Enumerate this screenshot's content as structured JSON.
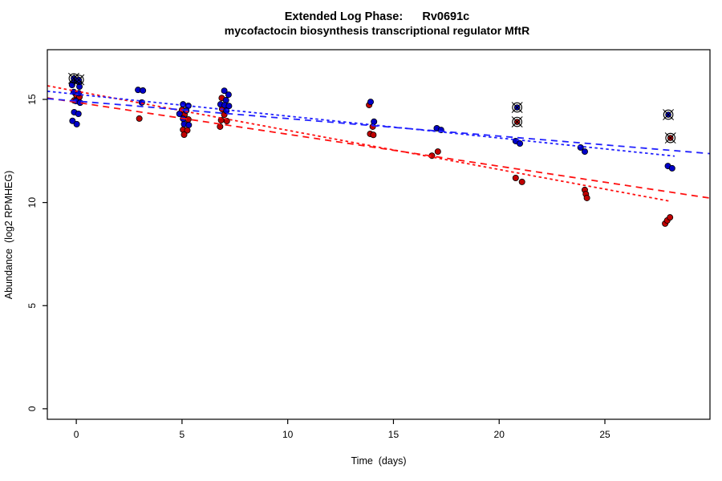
{
  "chart_data": {
    "type": "scatter",
    "title": "Extended Log Phase:      Rv0691c",
    "subtitle": "mycofactocin biosynthesis transcriptional regulator MftR",
    "xlabel": "Time  (days)",
    "ylabel": "Abundance  (log2 RPMHEG)",
    "xlim": [
      -1.37,
      29.97
    ],
    "ylim": [
      -0.51,
      17.41
    ],
    "x_ticks": [
      0,
      5,
      10,
      15,
      20,
      25
    ],
    "y_ticks": [
      0,
      5,
      10,
      15
    ],
    "grid": false,
    "legend": "none",
    "colors": {
      "blue_point": "#0000C8",
      "red_point": "#C00000",
      "blue_line": "#2020FF",
      "red_line": "#FF1010",
      "point_outline": "#000000",
      "box": "#000000"
    },
    "series": [
      {
        "name": "red",
        "color_key": "red_point",
        "points": [
          [
            0.0,
            15.22
          ],
          [
            0.15,
            15.12
          ],
          [
            -0.1,
            14.95
          ],
          [
            2.98,
            14.07
          ],
          [
            5.0,
            14.49
          ],
          [
            5.12,
            14.26
          ],
          [
            5.3,
            14.03
          ],
          [
            5.05,
            13.53
          ],
          [
            5.25,
            13.5
          ],
          [
            5.1,
            13.29
          ],
          [
            6.88,
            15.07
          ],
          [
            6.9,
            14.53
          ],
          [
            7.0,
            14.26
          ],
          [
            6.85,
            13.99
          ],
          [
            7.12,
            13.95
          ],
          [
            6.8,
            13.68
          ],
          [
            13.85,
            14.73
          ],
          [
            14.02,
            13.68
          ],
          [
            13.9,
            13.33
          ],
          [
            14.05,
            13.28
          ],
          [
            16.82,
            12.27
          ],
          [
            17.1,
            12.47
          ],
          [
            20.78,
            11.19
          ],
          [
            21.08,
            11.0
          ],
          [
            24.05,
            10.61
          ],
          [
            24.1,
            10.41
          ],
          [
            24.15,
            10.22
          ],
          [
            27.85,
            8.98
          ],
          [
            27.95,
            9.13
          ],
          [
            28.08,
            9.28
          ]
        ]
      },
      {
        "name": "blue",
        "color_key": "blue_point",
        "points": [
          [
            -0.1,
            15.9
          ],
          [
            0.12,
            15.85
          ],
          [
            -0.2,
            15.7
          ],
          [
            0.15,
            15.62
          ],
          [
            -0.12,
            15.36
          ],
          [
            0.12,
            15.3
          ],
          [
            -0.02,
            14.92
          ],
          [
            0.18,
            14.84
          ],
          [
            -0.1,
            14.38
          ],
          [
            0.1,
            14.3
          ],
          [
            -0.18,
            13.96
          ],
          [
            0.02,
            13.8
          ],
          [
            2.92,
            15.46
          ],
          [
            3.15,
            15.43
          ],
          [
            3.1,
            14.85
          ],
          [
            5.05,
            14.76
          ],
          [
            5.3,
            14.69
          ],
          [
            5.2,
            14.46
          ],
          [
            4.88,
            14.3
          ],
          [
            5.05,
            14.06
          ],
          [
            5.1,
            13.8
          ],
          [
            5.32,
            13.76
          ],
          [
            7.0,
            15.42
          ],
          [
            7.2,
            15.23
          ],
          [
            7.08,
            14.96
          ],
          [
            6.82,
            14.76
          ],
          [
            7.02,
            14.72
          ],
          [
            7.22,
            14.68
          ],
          [
            7.1,
            14.45
          ],
          [
            13.92,
            14.88
          ],
          [
            14.08,
            13.92
          ],
          [
            17.05,
            13.6
          ],
          [
            17.25,
            13.52
          ],
          [
            20.78,
            12.98
          ],
          [
            20.98,
            12.86
          ],
          [
            23.85,
            12.67
          ],
          [
            24.05,
            12.47
          ],
          [
            27.98,
            11.77
          ],
          [
            28.18,
            11.66
          ]
        ]
      }
    ],
    "outlier_points": [
      {
        "series": "blue",
        "x": -0.12,
        "y": 16.02
      },
      {
        "series": "blue",
        "x": 0.12,
        "y": 15.95
      },
      {
        "series": "blue",
        "x": 20.85,
        "y": 14.61
      },
      {
        "series": "red",
        "x": 20.85,
        "y": 13.91
      },
      {
        "series": "blue",
        "x": 28.0,
        "y": 14.26
      },
      {
        "series": "red",
        "x": 28.1,
        "y": 13.13
      }
    ],
    "trend_lines": [
      {
        "series": "red",
        "style": "dashed",
        "intercept": 14.86,
        "slope": -0.155,
        "x_start": -1.37,
        "x_end": 29.97
      },
      {
        "series": "red",
        "style": "dotted",
        "intercept": 15.4,
        "slope": -0.19,
        "x_start": -1.37,
        "x_end": 28.1
      },
      {
        "series": "blue",
        "style": "dashed",
        "intercept": 14.92,
        "slope": -0.085,
        "x_start": -1.37,
        "x_end": 29.97
      },
      {
        "series": "blue",
        "style": "dotted",
        "intercept": 15.25,
        "slope": -0.106,
        "x_start": -1.37,
        "x_end": 28.3
      }
    ]
  }
}
